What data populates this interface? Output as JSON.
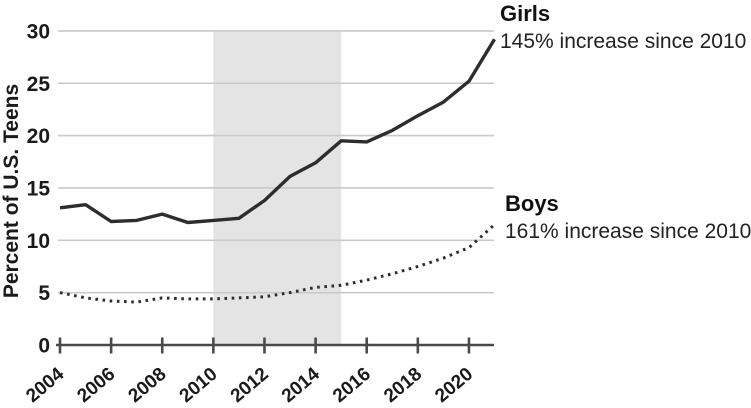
{
  "figure": {
    "y_axis_title": "Percent of U.S. Teens",
    "annotations": {
      "girls_label": "Girls",
      "girls_caption": "145% increase since 2010",
      "boys_label": "Boys",
      "boys_caption": "161% increase since 2010"
    }
  },
  "chart_data": {
    "type": "line",
    "title": "",
    "xlabel": "",
    "ylabel": "Percent of U.S. Teens",
    "x": [
      2004,
      2005,
      2006,
      2007,
      2008,
      2009,
      2010,
      2011,
      2012,
      2013,
      2014,
      2015,
      2016,
      2017,
      2018,
      2019,
      2020,
      2021
    ],
    "series": [
      {
        "name": "Girls",
        "style": "solid",
        "annotation": "145% increase since 2010",
        "values": [
          13.1,
          13.4,
          11.8,
          11.9,
          12.5,
          11.7,
          11.9,
          12.1,
          13.8,
          16.1,
          17.4,
          19.5,
          19.4,
          20.5,
          21.9,
          23.2,
          25.2,
          29.2
        ]
      },
      {
        "name": "Boys",
        "style": "dotted",
        "annotation": "161% increase since 2010",
        "values": [
          5.0,
          4.5,
          4.2,
          4.1,
          4.5,
          4.4,
          4.4,
          4.5,
          4.6,
          5.0,
          5.5,
          5.7,
          6.2,
          6.8,
          7.5,
          8.3,
          9.3,
          11.5
        ]
      }
    ],
    "x_ticks": [
      2004,
      2006,
      2008,
      2010,
      2012,
      2014,
      2016,
      2018,
      2020
    ],
    "y_ticks": [
      0,
      5,
      10,
      15,
      20,
      25,
      30
    ],
    "xlim": [
      2004,
      2021
    ],
    "ylim": [
      0,
      30
    ],
    "grid": "horizontal",
    "legend_position": "right-annotations",
    "shaded_region": {
      "from": 2010,
      "to": 2015,
      "color": "#e4e4e4"
    },
    "colors": {
      "line": "#2d2d2d",
      "gridline": "#c9c9c9",
      "axis": "#4a4a4a",
      "tick_text": "#1a1a1a",
      "background": "#ffffff"
    }
  }
}
